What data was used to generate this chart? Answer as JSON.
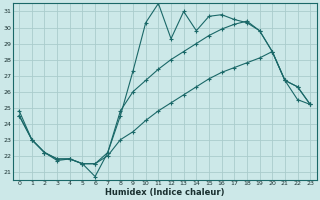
{
  "xlabel": "Humidex (Indice chaleur)",
  "bg_color": "#cce8e8",
  "grid_color": "#aacccc",
  "line_color": "#1a6868",
  "xlim": [
    -0.5,
    23.5
  ],
  "ylim": [
    20.5,
    31.5
  ],
  "yticks": [
    21,
    22,
    23,
    24,
    25,
    26,
    27,
    28,
    29,
    30,
    31
  ],
  "xticks": [
    0,
    1,
    2,
    3,
    4,
    5,
    6,
    7,
    8,
    9,
    10,
    11,
    12,
    13,
    14,
    15,
    16,
    17,
    18,
    19,
    20,
    21,
    22,
    23
  ],
  "line1_x": [
    0,
    1,
    2,
    3,
    4,
    5,
    6,
    7,
    8,
    9,
    10,
    11,
    12,
    13,
    14,
    15,
    16,
    17,
    18,
    19,
    20,
    21,
    22,
    23
  ],
  "line1_y": [
    24.8,
    23.0,
    22.2,
    21.7,
    21.8,
    21.5,
    20.7,
    22.2,
    24.5,
    27.3,
    30.3,
    31.5,
    29.3,
    31.0,
    29.8,
    30.7,
    30.8,
    30.5,
    30.3,
    29.8,
    28.5,
    26.7,
    26.3,
    25.2
  ],
  "line2_x": [
    0,
    1,
    2,
    3,
    4,
    5,
    6,
    7,
    8,
    9,
    10,
    11,
    12,
    13,
    14,
    15,
    16,
    17,
    18,
    19,
    20,
    21,
    22,
    23
  ],
  "line2_y": [
    24.5,
    23.0,
    22.2,
    21.8,
    21.8,
    21.5,
    21.5,
    22.2,
    24.8,
    26.0,
    26.7,
    27.4,
    28.0,
    28.5,
    29.0,
    29.5,
    29.9,
    30.2,
    30.4,
    29.8,
    28.5,
    26.7,
    26.3,
    25.2
  ],
  "line3_x": [
    0,
    1,
    2,
    3,
    4,
    5,
    6,
    7,
    8,
    9,
    10,
    11,
    12,
    13,
    14,
    15,
    16,
    17,
    18,
    19,
    20,
    21,
    22,
    23
  ],
  "line3_y": [
    24.5,
    23.0,
    22.2,
    21.8,
    21.8,
    21.5,
    21.5,
    22.0,
    23.0,
    23.5,
    24.2,
    24.8,
    25.3,
    25.8,
    26.3,
    26.8,
    27.2,
    27.5,
    27.8,
    28.1,
    28.5,
    26.7,
    25.5,
    25.2
  ]
}
